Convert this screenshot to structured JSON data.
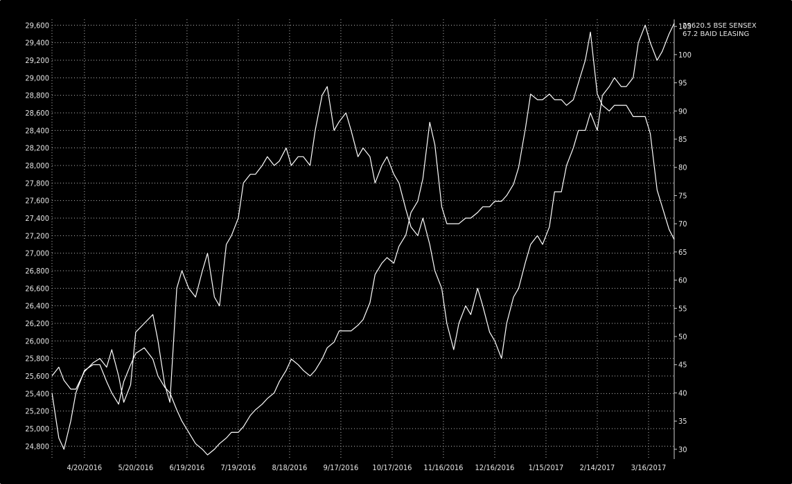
{
  "colors": {
    "background": "#000000",
    "line": "#ffffff",
    "grid": "#bdbdbd",
    "text": "#e6e6e6"
  },
  "legend": [
    {
      "value": "29620.5",
      "name": "BSE SENSEX"
    },
    {
      "value": "67.2",
      "name": "BAID LEASING"
    }
  ],
  "chart_data": {
    "type": "line",
    "title": "",
    "xlabel": "",
    "grid": true,
    "legend_position": "top-right, outside plot",
    "x_ticks": [
      "4/20/2016",
      "5/20/2016",
      "6/19/2016",
      "7/19/2016",
      "8/18/2016",
      "9/17/2016",
      "10/17/2016",
      "11/16/2016",
      "12/16/2016",
      "1/15/2017",
      "2/14/2017",
      "3/16/2017"
    ],
    "x_range": [
      "4/1/2016",
      "3/31/2017"
    ],
    "y_left": {
      "label": "",
      "range": [
        24700,
        29650
      ],
      "ticks": [
        24800,
        25000,
        25200,
        25400,
        25600,
        25800,
        26000,
        26200,
        26400,
        26600,
        26800,
        27000,
        27200,
        27400,
        27600,
        27800,
        28000,
        28200,
        28400,
        28600,
        28800,
        29000,
        29200,
        29400,
        29600
      ],
      "tick_labels": [
        "24,800",
        "25,000",
        "25,200",
        "25,400",
        "25,600",
        "25,800",
        "26,000",
        "26,200",
        "26,400",
        "26,600",
        "26,800",
        "27,000",
        "27,200",
        "27,400",
        "27,600",
        "27,800",
        "28,000",
        "28,200",
        "28,400",
        "28,600",
        "28,800",
        "29,000",
        "29,200",
        "29,400",
        "29,600"
      ]
    },
    "y_right": {
      "label": "",
      "range": [
        29,
        106
      ],
      "ticks": [
        30,
        35,
        40,
        45,
        50,
        55,
        60,
        65,
        70,
        75,
        80,
        85,
        90,
        95,
        100,
        105
      ],
      "tick_labels": [
        "30",
        "35",
        "40",
        "45",
        "50",
        "55",
        "60",
        "65",
        "70",
        "75",
        "80",
        "85",
        "90",
        "95",
        "100",
        "105"
      ]
    },
    "series": [
      {
        "name": "BSE SENSEX",
        "axis": "left",
        "x": [
          "4/1/2016",
          "4/5/2016",
          "4/8/2016",
          "4/12/2016",
          "4/15/2016",
          "4/20/2016",
          "4/25/2016",
          "4/29/2016",
          "5/3/2016",
          "5/6/2016",
          "5/10/2016",
          "5/13/2016",
          "5/17/2016",
          "5/20/2016",
          "5/25/2016",
          "5/30/2016",
          "6/2/2016",
          "6/6/2016",
          "6/9/2016",
          "6/13/2016",
          "6/16/2016",
          "6/20/2016",
          "6/24/2016",
          "6/28/2016",
          "7/1/2016",
          "7/5/2016",
          "7/8/2016",
          "7/12/2016",
          "7/15/2016",
          "7/19/2016",
          "7/22/2016",
          "7/26/2016",
          "7/29/2016",
          "8/2/2016",
          "8/5/2016",
          "8/9/2016",
          "8/12/2016",
          "8/16/2016",
          "8/19/2016",
          "8/23/2016",
          "8/26/2016",
          "8/30/2016",
          "9/2/2016",
          "9/6/2016",
          "9/9/2016",
          "9/13/2016",
          "9/16/2016",
          "9/20/2016",
          "9/23/2016",
          "9/27/2016",
          "9/30/2016",
          "10/4/2016",
          "10/7/2016",
          "10/11/2016",
          "10/14/2016",
          "10/18/2016",
          "10/21/2016",
          "10/25/2016",
          "10/28/2016",
          "11/1/2016",
          "11/4/2016",
          "11/8/2016",
          "11/11/2016",
          "11/15/2016",
          "11/18/2016",
          "11/22/2016",
          "11/25/2016",
          "11/29/2016",
          "12/2/2016",
          "12/6/2016",
          "12/9/2016",
          "12/13/2016",
          "12/16/2016",
          "12/20/2016",
          "12/23/2016",
          "12/27/2016",
          "12/30/2016",
          "1/3/2017",
          "1/6/2017",
          "1/10/2017",
          "1/13/2017",
          "1/17/2017",
          "1/20/2017",
          "1/24/2017",
          "1/27/2017",
          "1/31/2017",
          "2/3/2017",
          "2/7/2017",
          "2/10/2017",
          "2/14/2017",
          "2/17/2017",
          "2/21/2017",
          "2/24/2017",
          "2/28/2017",
          "3/3/2017",
          "3/7/2017",
          "3/10/2017",
          "3/14/2017",
          "3/17/2017",
          "3/21/2017",
          "3/24/2017",
          "3/28/2017",
          "3/31/2017"
        ],
        "values": [
          25600,
          25700,
          25550,
          25450,
          25450,
          25650,
          25750,
          25800,
          25700,
          25900,
          25600,
          25300,
          25500,
          26100,
          26200,
          26300,
          26000,
          25500,
          25300,
          26600,
          26800,
          26600,
          26500,
          26800,
          27000,
          26500,
          26400,
          27100,
          27200,
          27400,
          27800,
          27900,
          27900,
          28000,
          28100,
          28000,
          28050,
          28200,
          28000,
          28100,
          28100,
          28000,
          28400,
          28800,
          28900,
          28400,
          28500,
          28600,
          28400,
          28100,
          28200,
          28100,
          27800,
          28000,
          28100,
          27900,
          27800,
          27500,
          27300,
          27200,
          27400,
          27100,
          26800,
          26600,
          26200,
          25900,
          26200,
          26400,
          26300,
          26600,
          26400,
          26100,
          26000,
          25800,
          26200,
          26500,
          26600,
          26900,
          27100,
          27200,
          27100,
          27300,
          27700,
          27700,
          28000,
          28200,
          28400,
          28400,
          28600,
          28400,
          28800,
          28900,
          29000,
          28900,
          28900,
          29000,
          29400,
          29600,
          29400,
          29200,
          29300,
          29500,
          29620.5
        ]
      },
      {
        "name": "BAID LEASING",
        "axis": "right",
        "x": [
          "4/1/2016",
          "4/5/2016",
          "4/8/2016",
          "4/12/2016",
          "4/15/2016",
          "4/20/2016",
          "4/25/2016",
          "4/29/2016",
          "5/3/2016",
          "5/6/2016",
          "5/10/2016",
          "5/13/2016",
          "5/17/2016",
          "5/20/2016",
          "5/25/2016",
          "5/30/2016",
          "6/2/2016",
          "6/6/2016",
          "6/9/2016",
          "6/13/2016",
          "6/16/2016",
          "6/20/2016",
          "6/24/2016",
          "6/28/2016",
          "7/1/2016",
          "7/5/2016",
          "7/8/2016",
          "7/12/2016",
          "7/15/2016",
          "7/19/2016",
          "7/22/2016",
          "7/26/2016",
          "7/29/2016",
          "8/2/2016",
          "8/5/2016",
          "8/9/2016",
          "8/12/2016",
          "8/16/2016",
          "8/19/2016",
          "8/23/2016",
          "8/26/2016",
          "8/30/2016",
          "9/2/2016",
          "9/6/2016",
          "9/9/2016",
          "9/13/2016",
          "9/16/2016",
          "9/20/2016",
          "9/23/2016",
          "9/27/2016",
          "9/30/2016",
          "10/4/2016",
          "10/7/2016",
          "10/11/2016",
          "10/14/2016",
          "10/18/2016",
          "10/21/2016",
          "10/25/2016",
          "10/28/2016",
          "11/1/2016",
          "11/4/2016",
          "11/8/2016",
          "11/11/2016",
          "11/15/2016",
          "11/18/2016",
          "11/22/2016",
          "11/25/2016",
          "11/29/2016",
          "12/2/2016",
          "12/6/2016",
          "12/9/2016",
          "12/13/2016",
          "12/16/2016",
          "12/20/2016",
          "12/23/2016",
          "12/27/2016",
          "12/30/2016",
          "1/3/2017",
          "1/6/2017",
          "1/10/2017",
          "1/13/2017",
          "1/17/2017",
          "1/20/2017",
          "1/24/2017",
          "1/27/2017",
          "1/31/2017",
          "2/3/2017",
          "2/7/2017",
          "2/10/2017",
          "2/14/2017",
          "2/17/2017",
          "2/21/2017",
          "2/24/2017",
          "2/28/2017",
          "3/3/2017",
          "3/7/2017",
          "3/10/2017",
          "3/14/2017",
          "3/17/2017",
          "3/21/2017",
          "3/24/2017",
          "3/28/2017",
          "3/31/2017"
        ],
        "values": [
          40,
          32,
          30,
          35,
          40,
          44,
          45,
          45,
          42,
          40,
          38,
          42,
          45,
          47,
          48,
          46,
          43,
          41,
          40,
          37,
          35,
          33,
          31,
          30,
          29,
          30,
          31,
          32,
          33,
          33,
          34,
          36,
          37,
          38,
          39,
          40,
          42,
          44,
          46,
          45,
          44,
          43,
          44,
          46,
          48,
          49,
          51,
          51,
          51,
          52,
          53,
          56,
          61,
          63,
          64,
          63,
          66,
          68,
          72,
          74,
          78,
          88,
          84,
          73,
          70,
          70,
          70,
          71,
          71,
          72,
          73,
          73,
          74,
          74,
          75,
          77,
          80,
          87,
          93,
          92,
          92,
          93,
          92,
          92,
          91,
          92,
          95,
          99,
          104,
          93,
          91,
          90,
          91,
          91,
          91,
          89,
          89,
          89,
          86,
          76,
          73,
          69,
          67.2
        ]
      }
    ]
  }
}
